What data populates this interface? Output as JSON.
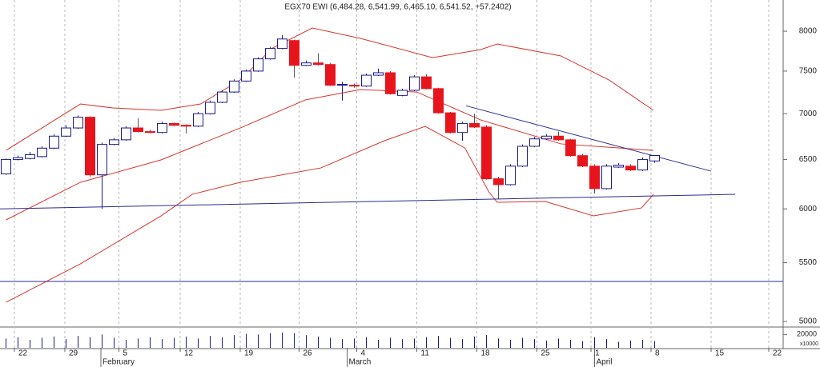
{
  "chart_data": {
    "type": "candlestick",
    "title": "EGX70 EWI (6,484.28, 6,541.99, 6,465.10, 6,541.52, +57.2402)",
    "log_scale": true,
    "ylim": [
      4968,
      8415
    ],
    "yticks": [
      5000,
      5500,
      6000,
      6500,
      7000,
      7500,
      8000
    ],
    "xlim": [
      -0.5,
      64.7
    ],
    "xticks": [
      {
        "value": 0.7,
        "label": "22"
      },
      {
        "value": 4.9,
        "label": "29"
      },
      {
        "value": 9.4,
        "label": "5"
      },
      {
        "value": 14.5,
        "label": "12"
      },
      {
        "value": 19.5,
        "label": "19"
      },
      {
        "value": 24.4,
        "label": "26"
      },
      {
        "value": 29.2,
        "label": "4"
      },
      {
        "value": 34.2,
        "label": "11"
      },
      {
        "value": 39.2,
        "label": "18"
      },
      {
        "value": 44.2,
        "label": "25"
      },
      {
        "value": 48.7,
        "label": "1"
      },
      {
        "value": 53.7,
        "label": "8"
      },
      {
        "value": 58.7,
        "label": "15"
      },
      {
        "value": 63.5,
        "label": "22"
      }
    ],
    "month_ticks": [
      {
        "value": 7.9,
        "label": "February"
      },
      {
        "value": 28.4,
        "label": "March"
      },
      {
        "value": 49,
        "label": "April"
      }
    ],
    "up_color": "#1a1a8c",
    "down_color": "#e8141c",
    "open": [
      6350,
      6500,
      6510,
      6530,
      6620,
      6750,
      6840,
      6960,
      6340,
      6660,
      6710,
      6840,
      6800,
      6790,
      6890,
      6870,
      6860,
      7000,
      7130,
      7250,
      7380,
      7500,
      7650,
      7780,
      7880,
      7570,
      7600,
      7580,
      7330,
      7330,
      7320,
      7450,
      7480,
      7210,
      7270,
      7430,
      7290,
      7010,
      6790,
      6890,
      6850,
      6300,
      6240,
      6430,
      6640,
      6720,
      6750,
      6710,
      6540,
      6430,
      6200,
      6420,
      6430,
      6390,
      6484.28
    ],
    "high": [
      6510,
      6540,
      6580,
      6640,
      6770,
      6870,
      6980,
      6970,
      6680,
      6730,
      6860,
      6950,
      6820,
      6910,
      6900,
      6880,
      7020,
      7150,
      7270,
      7400,
      7520,
      7670,
      7800,
      7950,
      7890,
      7630,
      7720,
      7600,
      7370,
      7350,
      7470,
      7530,
      7500,
      7290,
      7450,
      7460,
      7300,
      7020,
      6910,
      7000,
      6870,
      6320,
      6450,
      6660,
      6740,
      6770,
      6800,
      6720,
      6560,
      6450,
      6450,
      6460,
      6450,
      6520,
      6541.99
    ],
    "low": [
      6340,
      6490,
      6500,
      6520,
      6610,
      6740,
      6830,
      6320,
      6000,
      6650,
      6700,
      6790,
      6780,
      6780,
      6860,
      6780,
      6850,
      6990,
      7120,
      7240,
      7370,
      7490,
      7640,
      7770,
      7420,
      7560,
      7570,
      7320,
      7150,
      7300,
      7310,
      7440,
      7220,
      7200,
      7260,
      7280,
      7000,
      6780,
      6700,
      6840,
      6290,
      6100,
      6230,
      6420,
      6630,
      6710,
      6700,
      6530,
      6420,
      6150,
      6190,
      6410,
      6380,
      6380,
      6465.1
    ],
    "close": [
      6500,
      6520,
      6550,
      6620,
      6750,
      6840,
      6960,
      6340,
      6660,
      6710,
      6840,
      6800,
      6790,
      6890,
      6870,
      6860,
      7000,
      7130,
      7250,
      7380,
      7500,
      7650,
      7780,
      7900,
      7570,
      7600,
      7580,
      7330,
      7340,
      7320,
      7450,
      7480,
      7230,
      7270,
      7430,
      7290,
      7010,
      6790,
      6890,
      6850,
      6300,
      6240,
      6430,
      6640,
      6720,
      6750,
      6710,
      6540,
      6430,
      6200,
      6430,
      6440,
      6390,
      6500,
      6541.52
    ],
    "bands": [
      {
        "color": "#d9342b",
        "x": [
          0,
          6.2,
          8.9,
          12.9,
          16.2,
          19.5,
          22.2,
          25.5,
          29.5,
          35.5,
          39.5,
          40.9,
          46.2,
          50.2,
          53.9
        ],
        "values": [
          6596,
          7111,
          7065,
          7038,
          7111,
          7393,
          7786,
          8042,
          7908,
          7665,
          7765,
          7836,
          7686,
          7393,
          7038
        ]
      },
      {
        "color": "#d9342b",
        "x": [
          0,
          6.2,
          12.9,
          19.5,
          24.9,
          29.5,
          34.2,
          39.5,
          46.2,
          53.9
        ],
        "values": [
          5894,
          6264,
          6495,
          6840,
          7157,
          7279,
          7250,
          6930,
          6666,
          6596
        ]
      },
      {
        "color": "#d9342b",
        "x": [
          0,
          6.2,
          12.9,
          15.5,
          19.5,
          26.2,
          31.5,
          34.9,
          38.2,
          40.2,
          40.9,
          44.9,
          48.9,
          52.9,
          53.9
        ],
        "values": [
          5158,
          5489,
          5932,
          6143,
          6264,
          6411,
          6700,
          6858,
          6622,
          6167,
          6064,
          6072,
          5932,
          6009,
          6143
        ]
      }
    ],
    "lines": [
      {
        "color": "#2b2b8f",
        "x": [
          -0.5,
          60.7
        ],
        "values": [
          6000,
          6143
        ]
      },
      {
        "color": "#2b2b8f",
        "x": [
          -0.5,
          64.7
        ],
        "values": [
          5335,
          5335
        ]
      },
      {
        "color": "#2b2b8f",
        "x": [
          38.3,
          58.7
        ],
        "values": [
          7090,
          6378
        ]
      }
    ],
    "volume": [
      14000,
      16000,
      12000,
      15000,
      17000,
      13000,
      18000,
      16000,
      20000,
      15000,
      12000,
      14000,
      16000,
      13000,
      15000,
      17000,
      14000,
      18000,
      16000,
      19000,
      21000,
      20000,
      22000,
      23000,
      22000,
      19000,
      17000,
      15000,
      13000,
      14000,
      16000,
      12000,
      15000,
      13000,
      14000,
      16000,
      18000,
      15000,
      13000,
      17000,
      19000,
      14000,
      12000,
      15000,
      13000,
      11000,
      14000,
      12000,
      10000,
      16000,
      13000,
      9000,
      11000,
      12000,
      10000
    ],
    "volume_ylim": [
      0,
      30000
    ],
    "volume_yticks": [
      20000
    ],
    "volume_unit_label": "x10000"
  }
}
